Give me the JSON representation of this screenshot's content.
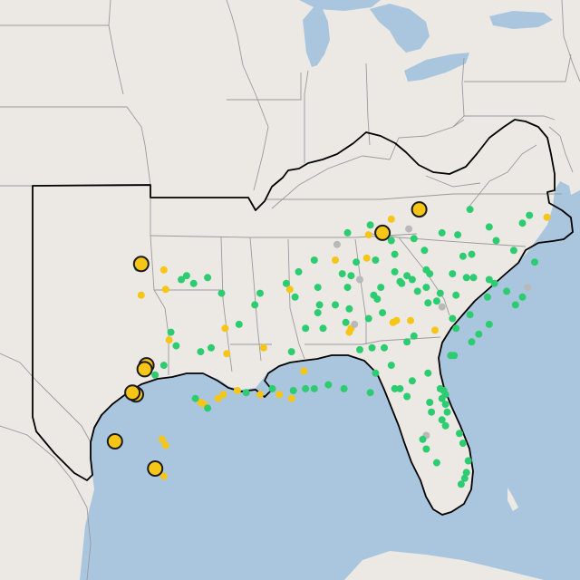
{
  "map": {
    "colors": {
      "land": "#ece9e5",
      "water": "#aac6df",
      "green": "#2ecc71",
      "yellow": "#f5c518",
      "gray": "#b9b9b9"
    },
    "markers_small": [
      {
        "lon": -96.2,
        "lat": 36.2,
        "c": "green"
      },
      {
        "lon": -96.5,
        "lat": 36.0,
        "c": "green"
      },
      {
        "lon": -95.8,
        "lat": 35.8,
        "c": "green"
      },
      {
        "lon": -97.5,
        "lat": 36.5,
        "c": "yellow"
      },
      {
        "lon": -99.0,
        "lat": 36.6,
        "c": "green"
      },
      {
        "lon": -95.0,
        "lat": 36.1,
        "c": "green"
      },
      {
        "lon": -97.4,
        "lat": 35.5,
        "c": "yellow"
      },
      {
        "lon": -98.8,
        "lat": 35.2,
        "c": "yellow"
      },
      {
        "lon": -94.2,
        "lat": 35.3,
        "c": "green"
      },
      {
        "lon": -97.1,
        "lat": 33.3,
        "c": "green"
      },
      {
        "lon": -97.2,
        "lat": 32.9,
        "c": "yellow"
      },
      {
        "lon": -96.8,
        "lat": 32.6,
        "c": "green"
      },
      {
        "lon": -95.4,
        "lat": 32.3,
        "c": "green"
      },
      {
        "lon": -97.5,
        "lat": 31.6,
        "c": "green"
      },
      {
        "lon": -98.0,
        "lat": 31.1,
        "c": "green"
      },
      {
        "lon": -94.0,
        "lat": 33.5,
        "c": "yellow"
      },
      {
        "lon": -94.8,
        "lat": 32.5,
        "c": "green"
      },
      {
        "lon": -93.9,
        "lat": 32.2,
        "c": "yellow"
      },
      {
        "lon": -95.4,
        "lat": 29.7,
        "c": "yellow"
      },
      {
        "lon": -95.2,
        "lat": 29.6,
        "c": "yellow"
      },
      {
        "lon": -95.0,
        "lat": 29.4,
        "c": "green"
      },
      {
        "lon": -94.4,
        "lat": 29.9,
        "c": "yellow"
      },
      {
        "lon": -94.1,
        "lat": 30.1,
        "c": "yellow"
      },
      {
        "lon": -95.7,
        "lat": 29.9,
        "c": "green"
      },
      {
        "lon": -97.6,
        "lat": 27.8,
        "c": "yellow"
      },
      {
        "lon": -97.4,
        "lat": 27.5,
        "c": "yellow"
      },
      {
        "lon": -97.5,
        "lat": 25.9,
        "c": "yellow"
      },
      {
        "lon": -93.2,
        "lat": 33.7,
        "c": "green"
      },
      {
        "lon": -92.3,
        "lat": 34.7,
        "c": "green"
      },
      {
        "lon": -92.0,
        "lat": 35.3,
        "c": "green"
      },
      {
        "lon": -90.5,
        "lat": 35.8,
        "c": "green"
      },
      {
        "lon": -90.3,
        "lat": 35.5,
        "c": "yellow"
      },
      {
        "lon": -90.0,
        "lat": 35.1,
        "c": "green"
      },
      {
        "lon": -92.8,
        "lat": 30.2,
        "c": "green"
      },
      {
        "lon": -92.0,
        "lat": 30.1,
        "c": "yellow"
      },
      {
        "lon": -91.3,
        "lat": 30.4,
        "c": "green"
      },
      {
        "lon": -90.9,
        "lat": 30.1,
        "c": "yellow"
      },
      {
        "lon": -90.2,
        "lat": 29.9,
        "c": "yellow"
      },
      {
        "lon": -90.1,
        "lat": 30.3,
        "c": "green"
      },
      {
        "lon": -93.3,
        "lat": 30.3,
        "c": "yellow"
      },
      {
        "lon": -91.8,
        "lat": 32.5,
        "c": "yellow"
      },
      {
        "lon": -89.5,
        "lat": 31.3,
        "c": "yellow"
      },
      {
        "lon": -89.4,
        "lat": 30.4,
        "c": "green"
      },
      {
        "lon": -88.9,
        "lat": 30.4,
        "c": "green"
      },
      {
        "lon": -88.1,
        "lat": 30.6,
        "c": "green"
      },
      {
        "lon": -90.2,
        "lat": 32.3,
        "c": "green"
      },
      {
        "lon": -88.7,
        "lat": 34.3,
        "c": "green"
      },
      {
        "lon": -88.4,
        "lat": 33.5,
        "c": "green"
      },
      {
        "lon": -89.4,
        "lat": 33.5,
        "c": "green"
      },
      {
        "lon": -88.6,
        "lat": 34.7,
        "c": "green"
      },
      {
        "lon": -87.7,
        "lat": 34.7,
        "c": "green"
      },
      {
        "lon": -86.9,
        "lat": 34.5,
        "c": "green"
      },
      {
        "lon": -86.8,
        "lat": 33.5,
        "c": "yellow"
      },
      {
        "lon": -86.9,
        "lat": 33.3,
        "c": "yellow"
      },
      {
        "lon": -86.3,
        "lat": 32.4,
        "c": "green"
      },
      {
        "lon": -87.1,
        "lat": 33.8,
        "c": "green"
      },
      {
        "lon": -86.6,
        "lat": 33.7,
        "c": "gray"
      },
      {
        "lon": -85.4,
        "lat": 31.2,
        "c": "green"
      },
      {
        "lon": -85.6,
        "lat": 32.5,
        "c": "green"
      },
      {
        "lon": -85.8,
        "lat": 34.0,
        "c": "green"
      },
      {
        "lon": -84.4,
        "lat": 33.8,
        "c": "yellow"
      },
      {
        "lon": -84.2,
        "lat": 33.9,
        "c": "yellow"
      },
      {
        "lon": -83.6,
        "lat": 32.8,
        "c": "green"
      },
      {
        "lon": -84.9,
        "lat": 32.5,
        "c": "green"
      },
      {
        "lon": -83.4,
        "lat": 33.9,
        "c": "yellow"
      },
      {
        "lon": -82.0,
        "lat": 33.4,
        "c": "yellow"
      },
      {
        "lon": -83.2,
        "lat": 33.1,
        "c": "green"
      },
      {
        "lon": -81.1,
        "lat": 32.1,
        "c": "green"
      },
      {
        "lon": -84.5,
        "lat": 31.6,
        "c": "green"
      },
      {
        "lon": -83.3,
        "lat": 30.8,
        "c": "green"
      },
      {
        "lon": -82.4,
        "lat": 31.2,
        "c": "green"
      },
      {
        "lon": -85.0,
        "lat": 34.3,
        "c": "green"
      },
      {
        "lon": -85.3,
        "lat": 35.0,
        "c": "green"
      },
      {
        "lon": -86.8,
        "lat": 36.2,
        "c": "green"
      },
      {
        "lon": -86.3,
        "lat": 36.0,
        "c": "gray"
      },
      {
        "lon": -87.3,
        "lat": 36.3,
        "c": "green"
      },
      {
        "lon": -89.8,
        "lat": 36.4,
        "c": "green"
      },
      {
        "lon": -88.7,
        "lat": 35.6,
        "c": "green"
      },
      {
        "lon": -87.0,
        "lat": 35.6,
        "c": "green"
      },
      {
        "lon": -84.0,
        "lat": 35.9,
        "c": "green"
      },
      {
        "lon": -83.9,
        "lat": 35.8,
        "c": "green"
      },
      {
        "lon": -85.1,
        "lat": 35.6,
        "c": "green"
      },
      {
        "lon": -84.3,
        "lat": 36.4,
        "c": "green"
      },
      {
        "lon": -82.5,
        "lat": 36.5,
        "c": "green"
      },
      {
        "lon": -83.6,
        "lat": 36.2,
        "c": "green"
      },
      {
        "lon": -83.3,
        "lat": 36.0,
        "c": "green"
      },
      {
        "lon": -82.3,
        "lat": 36.3,
        "c": "green"
      },
      {
        "lon": -85.5,
        "lat": 35.2,
        "c": "green"
      },
      {
        "lon": -85.9,
        "lat": 37.1,
        "c": "yellow"
      },
      {
        "lon": -86.5,
        "lat": 36.9,
        "c": "green"
      },
      {
        "lon": -85.8,
        "lat": 38.3,
        "c": "yellow"
      },
      {
        "lon": -84.5,
        "lat": 38.0,
        "c": "green"
      },
      {
        "lon": -83.2,
        "lat": 38.1,
        "c": "green"
      },
      {
        "lon": -87.7,
        "lat": 37.0,
        "c": "yellow"
      },
      {
        "lon": -88.9,
        "lat": 37.0,
        "c": "green"
      },
      {
        "lon": -82.6,
        "lat": 37.5,
        "c": "green"
      },
      {
        "lon": -84.3,
        "lat": 37.3,
        "c": "green"
      },
      {
        "lon": -85.4,
        "lat": 37.0,
        "c": "green"
      },
      {
        "lon": -82.5,
        "lat": 35.6,
        "c": "green"
      },
      {
        "lon": -81.7,
        "lat": 35.3,
        "c": "green"
      },
      {
        "lon": -80.8,
        "lat": 35.2,
        "c": "green"
      },
      {
        "lon": -80.2,
        "lat": 36.1,
        "c": "green"
      },
      {
        "lon": -79.8,
        "lat": 36.1,
        "c": "green"
      },
      {
        "lon": -78.9,
        "lat": 36.0,
        "c": "green"
      },
      {
        "lon": -78.6,
        "lat": 35.8,
        "c": "green"
      },
      {
        "lon": -77.9,
        "lat": 35.4,
        "c": "green"
      },
      {
        "lon": -77.0,
        "lat": 35.1,
        "c": "green"
      },
      {
        "lon": -76.7,
        "lat": 35.6,
        "c": "gray"
      },
      {
        "lon": -79.0,
        "lat": 35.1,
        "c": "green"
      },
      {
        "lon": -77.4,
        "lat": 34.7,
        "c": "green"
      },
      {
        "lon": -81.0,
        "lat": 36.3,
        "c": "green"
      },
      {
        "lon": -83.0,
        "lat": 35.4,
        "c": "green"
      },
      {
        "lon": -82.4,
        "lat": 34.8,
        "c": "green"
      },
      {
        "lon": -81.0,
        "lat": 34.0,
        "c": "green"
      },
      {
        "lon": -80.0,
        "lat": 34.2,
        "c": "green"
      },
      {
        "lon": -79.9,
        "lat": 32.8,
        "c": "green"
      },
      {
        "lon": -79.5,
        "lat": 33.2,
        "c": "green"
      },
      {
        "lon": -80.9,
        "lat": 32.1,
        "c": "green"
      },
      {
        "lon": -81.6,
        "lat": 34.6,
        "c": "gray"
      },
      {
        "lon": -80.8,
        "lat": 33.5,
        "c": "green"
      },
      {
        "lon": -78.9,
        "lat": 33.7,
        "c": "green"
      },
      {
        "lon": -81.9,
        "lat": 34.9,
        "c": "green"
      },
      {
        "lon": -81.7,
        "lat": 30.4,
        "c": "green"
      },
      {
        "lon": -81.5,
        "lat": 30.3,
        "c": "green"
      },
      {
        "lon": -81.4,
        "lat": 30.1,
        "c": "green"
      },
      {
        "lon": -81.6,
        "lat": 29.9,
        "c": "green"
      },
      {
        "lon": -81.4,
        "lat": 29.6,
        "c": "green"
      },
      {
        "lon": -81.3,
        "lat": 29.2,
        "c": "green"
      },
      {
        "lon": -82.3,
        "lat": 29.7,
        "c": "green"
      },
      {
        "lon": -84.3,
        "lat": 30.4,
        "c": "green"
      },
      {
        "lon": -85.7,
        "lat": 30.2,
        "c": "green"
      },
      {
        "lon": -87.2,
        "lat": 30.4,
        "c": "green"
      },
      {
        "lon": -81.4,
        "lat": 28.5,
        "c": "green"
      },
      {
        "lon": -82.5,
        "lat": 28.0,
        "c": "gray"
      },
      {
        "lon": -82.7,
        "lat": 27.8,
        "c": "green"
      },
      {
        "lon": -81.9,
        "lat": 26.6,
        "c": "green"
      },
      {
        "lon": -80.6,
        "lat": 28.1,
        "c": "green"
      },
      {
        "lon": -80.4,
        "lat": 27.6,
        "c": "green"
      },
      {
        "lon": -80.1,
        "lat": 26.7,
        "c": "green"
      },
      {
        "lon": -80.2,
        "lat": 26.1,
        "c": "green"
      },
      {
        "lon": -80.3,
        "lat": 25.8,
        "c": "green"
      },
      {
        "lon": -80.5,
        "lat": 25.5,
        "c": "green"
      },
      {
        "lon": -82.5,
        "lat": 27.3,
        "c": "green"
      },
      {
        "lon": -81.6,
        "lat": 28.8,
        "c": "green"
      },
      {
        "lon": -84.0,
        "lat": 30.4,
        "c": "green"
      },
      {
        "lon": -82.2,
        "lat": 29.2,
        "c": "green"
      },
      {
        "lon": -83.6,
        "lat": 30.0,
        "c": "green"
      },
      {
        "lon": -75.6,
        "lat": 39.2,
        "c": "yellow"
      },
      {
        "lon": -76.6,
        "lat": 39.3,
        "c": "green"
      },
      {
        "lon": -77.0,
        "lat": 38.9,
        "c": "green"
      },
      {
        "lon": -77.5,
        "lat": 37.5,
        "c": "green"
      },
      {
        "lon": -76.3,
        "lat": 36.9,
        "c": "green"
      },
      {
        "lon": -79.9,
        "lat": 37.3,
        "c": "green"
      },
      {
        "lon": -78.5,
        "lat": 38.0,
        "c": "green"
      },
      {
        "lon": -80.4,
        "lat": 37.2,
        "c": "green"
      },
      {
        "lon": -81.6,
        "lat": 38.4,
        "c": "green"
      },
      {
        "lon": -80.0,
        "lat": 39.6,
        "c": "green"
      },
      {
        "lon": -78.9,
        "lat": 38.7,
        "c": "green"
      },
      {
        "lon": -80.7,
        "lat": 38.3,
        "c": "green"
      },
      {
        "lon": -82.9,
        "lat": 39.4,
        "c": "green"
      },
      {
        "lon": -84.5,
        "lat": 39.1,
        "c": "yellow"
      },
      {
        "lon": -85.7,
        "lat": 38.8,
        "c": "green"
      },
      {
        "lon": -87.0,
        "lat": 38.4,
        "c": "green"
      },
      {
        "lon": -83.5,
        "lat": 38.6,
        "c": "gray"
      },
      {
        "lon": -85.1,
        "lat": 38.6,
        "c": "gray"
      },
      {
        "lon": -87.6,
        "lat": 37.8,
        "c": "gray"
      }
    ],
    "markers_large": [
      {
        "lon": -98.8,
        "lat": 36.8
      },
      {
        "lon": -98.5,
        "lat": 31.6
      },
      {
        "lon": -98.6,
        "lat": 31.4
      },
      {
        "lon": -99.1,
        "lat": 30.1
      },
      {
        "lon": -99.3,
        "lat": 30.2
      },
      {
        "lon": -100.3,
        "lat": 27.7
      },
      {
        "lon": -98.0,
        "lat": 26.3
      },
      {
        "lon": -85.0,
        "lat": 38.4
      },
      {
        "lon": -82.9,
        "lat": 39.6
      }
    ]
  }
}
